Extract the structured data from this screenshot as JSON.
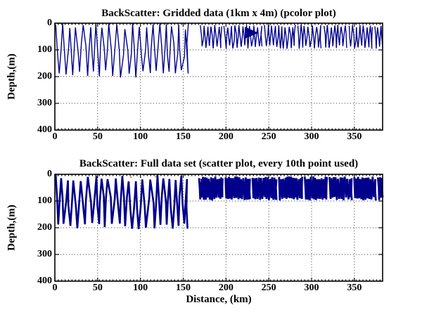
{
  "figure": {
    "background": "#ffffff",
    "axis_color": "#000000",
    "grid_style": "dotted",
    "data_color": "#00008b"
  },
  "chart_data": [
    {
      "type": "heatmap",
      "title": "BackScatter: Gridded data (1km x 4m) (pcolor plot)",
      "xlabel": "",
      "ylabel": "Depth,(m)",
      "xlim": [
        0,
        383
      ],
      "ylim": [
        400,
        0
      ],
      "x_ticks": [
        0,
        50,
        100,
        150,
        200,
        250,
        300,
        350
      ],
      "y_ticks": [
        0,
        100,
        200,
        300,
        400
      ],
      "grid": "on",
      "color": "#00008b",
      "stroke_width": 1.4,
      "seed": 11,
      "segments": [
        {
          "x_start": 1,
          "x_end": 156,
          "depth_min": 1,
          "depth_max": 207,
          "period_km": 8.0
        },
        {
          "x_start": 170,
          "x_end": 195,
          "depth_min": 6,
          "depth_max": 96,
          "period_km": 4.4
        },
        {
          "x_start": 197.5,
          "x_end": 242,
          "depth_min": 6,
          "depth_max": 96,
          "period_km": 4.4
        },
        {
          "x_start": 245,
          "x_end": 281,
          "depth_min": 6,
          "depth_max": 96,
          "period_km": 4.4
        },
        {
          "x_start": 284,
          "x_end": 311,
          "depth_min": 6,
          "depth_max": 96,
          "period_km": 4.4
        },
        {
          "x_start": 314.5,
          "x_end": 341,
          "depth_min": 6,
          "depth_max": 96,
          "period_km": 4.4
        },
        {
          "x_start": 344,
          "x_end": 371,
          "depth_min": 6,
          "depth_max": 96,
          "period_km": 4.4
        },
        {
          "x_start": 374,
          "x_end": 383,
          "depth_min": 6,
          "depth_max": 96,
          "period_km": 4.4
        }
      ],
      "wedge": {
        "x_start": 222,
        "x_end": 238,
        "depth_top": 14,
        "depth_bottom": 58
      },
      "specks": []
    },
    {
      "type": "scatter",
      "title": "BackScatter: Full data set (scatter plot, every 10th point used)",
      "xlabel": "Distance, (km)",
      "ylabel": "Depth,(m)",
      "xlim": [
        0,
        383
      ],
      "ylim": [
        400,
        0
      ],
      "x_ticks": [
        0,
        50,
        100,
        150,
        200,
        250,
        300,
        350
      ],
      "y_ticks": [
        0,
        100,
        200,
        300,
        400
      ],
      "grid": "on",
      "color": "#00008b",
      "stroke_width": 2.6,
      "seed": 23,
      "segments": [
        {
          "x_start": 1,
          "x_end": 155,
          "depth_min": 2,
          "depth_max": 207,
          "period_km": 8.0
        },
        {
          "x_start": 168.5,
          "x_end": 196,
          "depth_min": 8,
          "depth_max": 98,
          "period_km": 2.4,
          "stroke_width": 2.8
        },
        {
          "x_start": 199.5,
          "x_end": 228,
          "depth_min": 8,
          "depth_max": 98,
          "period_km": 2.4,
          "stroke_width": 2.8
        },
        {
          "x_start": 231,
          "x_end": 259,
          "depth_min": 8,
          "depth_max": 98,
          "period_km": 2.4,
          "stroke_width": 2.8
        },
        {
          "x_start": 262,
          "x_end": 289,
          "depth_min": 8,
          "depth_max": 98,
          "period_km": 2.4,
          "stroke_width": 2.8
        },
        {
          "x_start": 292,
          "x_end": 318,
          "depth_min": 8,
          "depth_max": 98,
          "period_km": 2.4,
          "stroke_width": 2.8
        },
        {
          "x_start": 321,
          "x_end": 347,
          "depth_min": 8,
          "depth_max": 98,
          "period_km": 2.4,
          "stroke_width": 2.8
        },
        {
          "x_start": 350,
          "x_end": 375,
          "depth_min": 8,
          "depth_max": 98,
          "period_km": 2.4,
          "stroke_width": 2.8
        },
        {
          "x_start": 377.5,
          "x_end": 383,
          "depth_min": 8,
          "depth_max": 98,
          "period_km": 2.4,
          "stroke_width": 2.8
        }
      ],
      "wedge": null,
      "specks": [
        {
          "x": 2,
          "depth": 3,
          "color": "#7fd4e8"
        },
        {
          "x": 88,
          "depth": 8,
          "color": "#cf8b3e"
        },
        {
          "x": 117,
          "depth": 6,
          "color": "#caa04a"
        },
        {
          "x": 169.5,
          "depth": 22,
          "color": "#d2691e"
        }
      ]
    }
  ]
}
